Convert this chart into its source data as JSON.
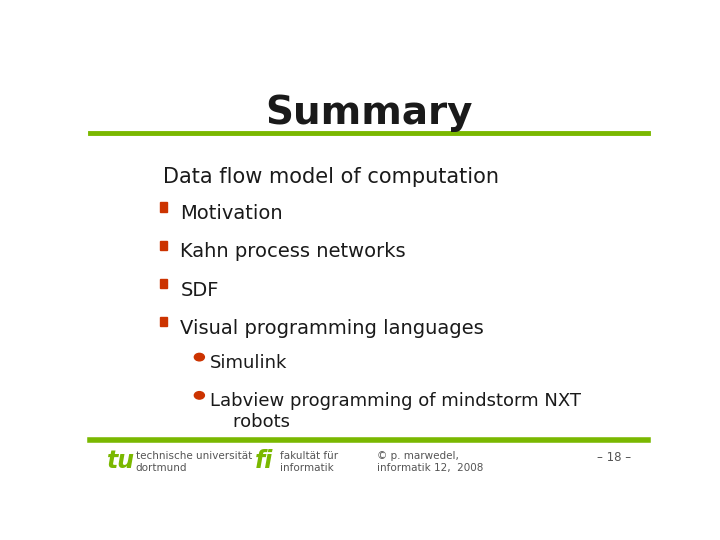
{
  "title": "Summary",
  "title_color": "#1a1a1a",
  "title_fontsize": 28,
  "bg_color": "#ffffff",
  "line_color": "#7ab800",
  "bullet_color": "#cc3300",
  "text_color": "#1a1a1a",
  "sub_bullet_color": "#cc3300",
  "main_header": "Data flow model of computation",
  "footer_left1": "technische universität",
  "footer_left2": "dortmund",
  "footer_mid1": "fakultät für",
  "footer_mid2": "informatik",
  "footer_right1": "© p. marwedel,",
  "footer_right2": "informatik 12,  2008",
  "footer_page": "– 18 –",
  "footer_color": "#555555"
}
